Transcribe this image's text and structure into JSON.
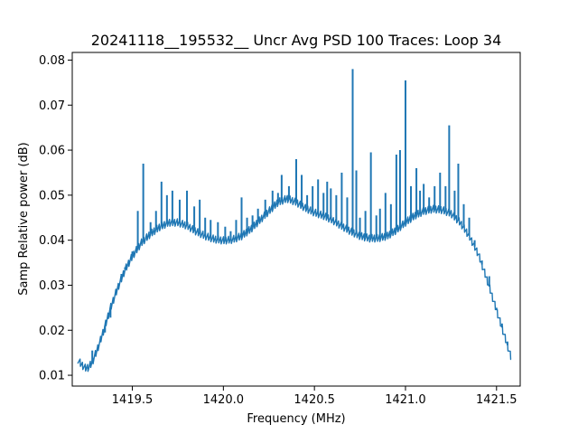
{
  "chart_data": {
    "type": "line",
    "title": "20241118__195532__  Uncr Avg PSD 100 Traces: Loop 34",
    "xlabel": "Frequency (MHz)",
    "ylabel": "Samp Relative power (dB)",
    "xlim": [
      1419.17,
      1421.63
    ],
    "ylim": [
      0.0076,
      0.0817
    ],
    "xticks": [
      1419.5,
      1420.0,
      1420.5,
      1421.0,
      1421.5
    ],
    "xtick_labels": [
      "1419.5",
      "1420.0",
      "1420.5",
      "1421.0",
      "1421.5"
    ],
    "yticks": [
      0.01,
      0.02,
      0.03,
      0.04,
      0.05,
      0.06,
      0.07,
      0.08
    ],
    "ytick_labels": [
      "0.01",
      "0.02",
      "0.03",
      "0.04",
      "0.05",
      "0.06",
      "0.07",
      "0.08"
    ],
    "grid": false,
    "series": [
      {
        "color": "#1f77b4",
        "baseline": [
          [
            1419.2,
            0.0135
          ],
          [
            1419.22,
            0.0125
          ],
          [
            1419.24,
            0.0117
          ],
          [
            1419.26,
            0.0118
          ],
          [
            1419.28,
            0.013
          ],
          [
            1419.3,
            0.015
          ],
          [
            1419.32,
            0.0172
          ],
          [
            1419.35,
            0.021
          ],
          [
            1419.38,
            0.025
          ],
          [
            1419.42,
            0.0295
          ],
          [
            1419.46,
            0.0335
          ],
          [
            1419.5,
            0.0365
          ],
          [
            1419.55,
            0.0395
          ],
          [
            1419.6,
            0.0415
          ],
          [
            1419.65,
            0.043
          ],
          [
            1419.7,
            0.044
          ],
          [
            1419.75,
            0.044
          ],
          [
            1419.8,
            0.0433
          ],
          [
            1419.85,
            0.042
          ],
          [
            1419.9,
            0.041
          ],
          [
            1419.95,
            0.0403
          ],
          [
            1420.0,
            0.04
          ],
          [
            1420.05,
            0.0402
          ],
          [
            1420.1,
            0.041
          ],
          [
            1420.15,
            0.0425
          ],
          [
            1420.2,
            0.0445
          ],
          [
            1420.25,
            0.0465
          ],
          [
            1420.3,
            0.0485
          ],
          [
            1420.35,
            0.0493
          ],
          [
            1420.4,
            0.0485
          ],
          [
            1420.45,
            0.0472
          ],
          [
            1420.5,
            0.0462
          ],
          [
            1420.55,
            0.0455
          ],
          [
            1420.6,
            0.0445
          ],
          [
            1420.65,
            0.0432
          ],
          [
            1420.7,
            0.042
          ],
          [
            1420.75,
            0.041
          ],
          [
            1420.8,
            0.0405
          ],
          [
            1420.85,
            0.0405
          ],
          [
            1420.9,
            0.041
          ],
          [
            1420.95,
            0.0423
          ],
          [
            1421.0,
            0.044
          ],
          [
            1421.05,
            0.0455
          ],
          [
            1421.1,
            0.0465
          ],
          [
            1421.15,
            0.047
          ],
          [
            1421.2,
            0.0468
          ],
          [
            1421.25,
            0.046
          ],
          [
            1421.3,
            0.044
          ],
          [
            1421.35,
            0.041
          ],
          [
            1421.4,
            0.037
          ],
          [
            1421.45,
            0.031
          ],
          [
            1421.5,
            0.0245
          ],
          [
            1421.55,
            0.018
          ],
          [
            1421.58,
            0.014
          ]
        ],
        "spikes": [
          [
            1419.28,
            0.0155
          ],
          [
            1419.35,
            0.0195
          ],
          [
            1419.38,
            0.0228
          ],
          [
            1419.41,
            0.029
          ],
          [
            1419.44,
            0.0325
          ],
          [
            1419.46,
            0.034
          ],
          [
            1419.48,
            0.0355
          ],
          [
            1419.5,
            0.0375
          ],
          [
            1419.53,
            0.0465
          ],
          [
            1419.56,
            0.057
          ],
          [
            1419.6,
            0.044
          ],
          [
            1419.63,
            0.0465
          ],
          [
            1419.66,
            0.053
          ],
          [
            1419.69,
            0.05
          ],
          [
            1419.72,
            0.051
          ],
          [
            1419.76,
            0.049
          ],
          [
            1419.8,
            0.051
          ],
          [
            1419.84,
            0.0475
          ],
          [
            1419.87,
            0.049
          ],
          [
            1419.9,
            0.045
          ],
          [
            1419.93,
            0.0445
          ],
          [
            1419.97,
            0.044
          ],
          [
            1420.01,
            0.043
          ],
          [
            1420.04,
            0.042
          ],
          [
            1420.07,
            0.0445
          ],
          [
            1420.1,
            0.0495
          ],
          [
            1420.13,
            0.045
          ],
          [
            1420.16,
            0.0455
          ],
          [
            1420.19,
            0.047
          ],
          [
            1420.23,
            0.049
          ],
          [
            1420.27,
            0.051
          ],
          [
            1420.3,
            0.0505
          ],
          [
            1420.32,
            0.0545
          ],
          [
            1420.36,
            0.052
          ],
          [
            1420.4,
            0.058
          ],
          [
            1420.43,
            0.0545
          ],
          [
            1420.46,
            0.05
          ],
          [
            1420.49,
            0.052
          ],
          [
            1420.52,
            0.0535
          ],
          [
            1420.55,
            0.0505
          ],
          [
            1420.57,
            0.053
          ],
          [
            1420.59,
            0.0515
          ],
          [
            1420.62,
            0.05
          ],
          [
            1420.65,
            0.055
          ],
          [
            1420.68,
            0.0495
          ],
          [
            1420.71,
            0.078
          ],
          [
            1420.73,
            0.0555
          ],
          [
            1420.75,
            0.045
          ],
          [
            1420.78,
            0.0465
          ],
          [
            1420.81,
            0.0595
          ],
          [
            1420.84,
            0.0455
          ],
          [
            1420.86,
            0.047
          ],
          [
            1420.89,
            0.0505
          ],
          [
            1420.92,
            0.048
          ],
          [
            1420.95,
            0.059
          ],
          [
            1420.97,
            0.06
          ],
          [
            1421.0,
            0.0755
          ],
          [
            1421.03,
            0.052
          ],
          [
            1421.06,
            0.056
          ],
          [
            1421.08,
            0.051
          ],
          [
            1421.1,
            0.0525
          ],
          [
            1421.13,
            0.0495
          ],
          [
            1421.16,
            0.052
          ],
          [
            1421.19,
            0.055
          ],
          [
            1421.22,
            0.052
          ],
          [
            1421.24,
            0.0655
          ],
          [
            1421.27,
            0.051
          ],
          [
            1421.29,
            0.057
          ],
          [
            1421.32,
            0.048
          ],
          [
            1421.35,
            0.045
          ],
          [
            1421.38,
            0.04
          ],
          [
            1421.42,
            0.0355
          ],
          [
            1421.46,
            0.032
          ],
          [
            1421.5,
            0.025
          ],
          [
            1421.53,
            0.0215
          ],
          [
            1421.56,
            0.0175
          ]
        ]
      }
    ]
  }
}
